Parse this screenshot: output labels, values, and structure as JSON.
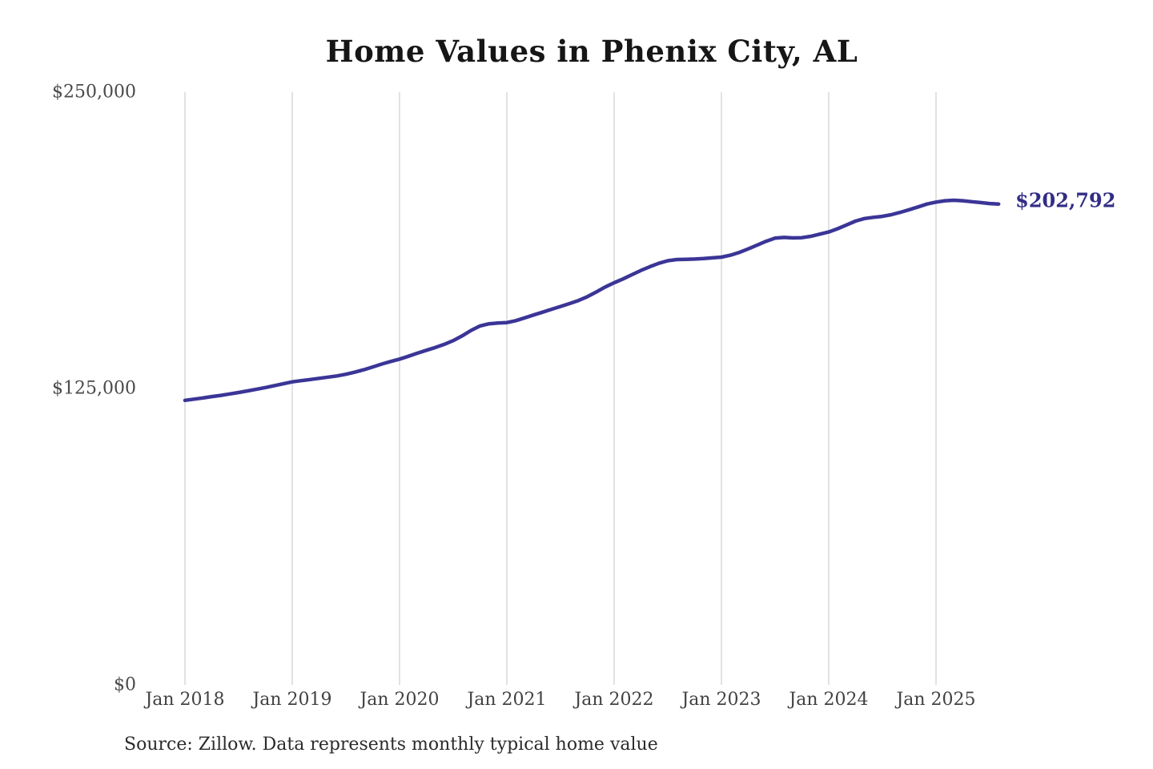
{
  "page": {
    "title": "Home Values in Phenix City, AL",
    "end_value_label": "$202,792",
    "source_note": "Source: Zillow. Data represents monthly typical home value"
  },
  "colors": {
    "background": "#ffffff",
    "line": "#3b3597",
    "end_label": "#322d85",
    "title": "#161616",
    "y_tick_label": "#4a4a4a",
    "x_tick_label": "#424242",
    "gridline": "#cfcfcf",
    "source": "#2b2b2b"
  },
  "chart_data": {
    "type": "line",
    "title": "Home Values in Phenix City, AL",
    "xlabel": "",
    "ylabel": "",
    "ylim": [
      0,
      250000
    ],
    "grid": "vertical-only",
    "legend": "none",
    "x_unit": "month",
    "start_month": "2018-01",
    "end_month": "2025-08",
    "x_tick_labels": [
      "Jan 2018",
      "Jan 2019",
      "Jan 2020",
      "Jan 2021",
      "Jan 2022",
      "Jan 2023",
      "Jan 2024",
      "Jan 2025"
    ],
    "y_ticks": [
      {
        "value": 0,
        "label": "$0"
      },
      {
        "value": 125000,
        "label": "$125,000"
      },
      {
        "value": 250000,
        "label": "$250,000"
      }
    ],
    "series": [
      {
        "name": "Monthly typical home value",
        "color": "#3b3597",
        "values": [
          120000,
          120500,
          121000,
          121600,
          122100,
          122700,
          123300,
          124000,
          124700,
          125400,
          126200,
          127000,
          127800,
          128300,
          128800,
          129300,
          129800,
          130300,
          131000,
          131900,
          132900,
          134100,
          135300,
          136400,
          137400,
          138600,
          139900,
          141100,
          142300,
          143600,
          145200,
          147200,
          149500,
          151400,
          152300,
          152600,
          152800,
          153600,
          154800,
          156000,
          157200,
          158400,
          159600,
          160800,
          162100,
          163700,
          165700,
          167800,
          169600,
          171200,
          173000,
          174800,
          176400,
          177800,
          178900,
          179400,
          179500,
          179600,
          179800,
          180100,
          180400,
          181200,
          182400,
          183900,
          185500,
          187100,
          188400,
          188700,
          188500,
          188600,
          189200,
          190100,
          191000,
          192400,
          194000,
          195600,
          196700,
          197200,
          197600,
          198300,
          199300,
          200400,
          201600,
          202800,
          203600,
          204200,
          204400,
          204200,
          203800,
          203400,
          203000,
          202792
        ]
      }
    ],
    "final_point": {
      "month": "2025-08",
      "value": 202792,
      "label": "$202,792"
    }
  }
}
